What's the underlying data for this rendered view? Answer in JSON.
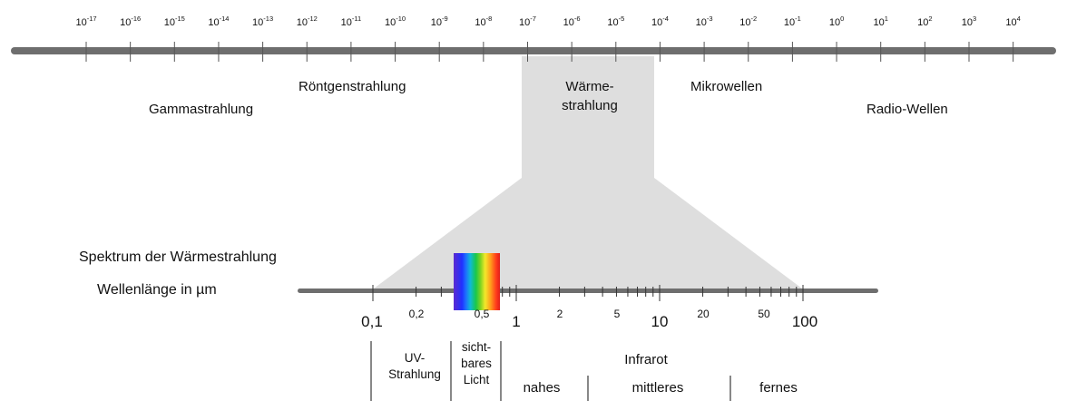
{
  "scale_top": {
    "ticks": [
      {
        "base": "10",
        "exp": "-17"
      },
      {
        "base": "10",
        "exp": "-16"
      },
      {
        "base": "10",
        "exp": "-15"
      },
      {
        "base": "10",
        "exp": "-14"
      },
      {
        "base": "10",
        "exp": "-13"
      },
      {
        "base": "10",
        "exp": "-12"
      },
      {
        "base": "10",
        "exp": "-11"
      },
      {
        "base": "10",
        "exp": "-10"
      },
      {
        "base": "10",
        "exp": "-9"
      },
      {
        "base": "10",
        "exp": "-8"
      },
      {
        "base": "10",
        "exp": "-7"
      },
      {
        "base": "10",
        "exp": "-6"
      },
      {
        "base": "10",
        "exp": "-5"
      },
      {
        "base": "10",
        "exp": "-4"
      },
      {
        "base": "10",
        "exp": "-3"
      },
      {
        "base": "10",
        "exp": "-2"
      },
      {
        "base": "10",
        "exp": "-1"
      },
      {
        "base": "10",
        "exp": "0"
      },
      {
        "base": "10",
        "exp": "1"
      },
      {
        "base": "10",
        "exp": "2"
      },
      {
        "base": "10",
        "exp": "3"
      },
      {
        "base": "10",
        "exp": "4"
      }
    ]
  },
  "regions": {
    "gamma": "Gammastrahlung",
    "xray": "Röntgenstrahlung",
    "heat_line1": "Wärme-",
    "heat_line2": "strahlung",
    "microwave": "Mikrowellen",
    "radio": "Radio-Wellen"
  },
  "zoom": {
    "title": "Spektrum der Wärmestrahlung",
    "axis_label": "Wellenlänge in µm",
    "labels": {
      "l01": "0,1",
      "l02": "0,2",
      "l05": "0,5",
      "l1": "1",
      "l2": "2",
      "l5": "5",
      "l10": "10",
      "l20": "20",
      "l50": "50",
      "l100": "100"
    },
    "bands": {
      "uv_line1": "UV-",
      "uv_line2": "Strahlung",
      "visible_line1": "sicht-",
      "visible_line2": "bares",
      "visible_line3": "Licht",
      "infrared": "Infrarot",
      "near": "nahes",
      "mid": "mittleres",
      "far": "fernes"
    }
  },
  "colors": {
    "scale_bar": "#6e6e6e",
    "zoom_wedge": "#dedede",
    "text": "#111111"
  }
}
